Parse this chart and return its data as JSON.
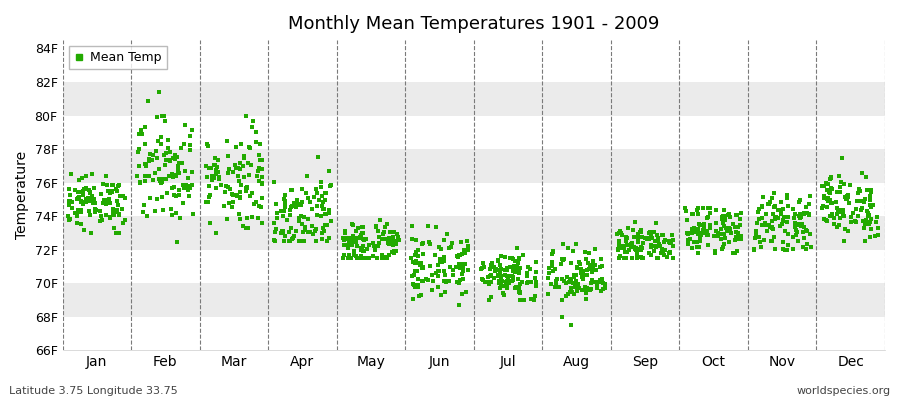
{
  "title": "Monthly Mean Temperatures 1901 - 2009",
  "ylabel": "Temperature",
  "bottom_left": "Latitude 3.75 Longitude 33.75",
  "bottom_right": "worldspecies.org",
  "legend_label": "Mean Temp",
  "dot_color": "#22aa00",
  "background_color": "#ffffff",
  "band_colors": [
    "#ffffff",
    "#ebebeb"
  ],
  "ylim": [
    66,
    84.5
  ],
  "yticks": [
    66,
    68,
    70,
    72,
    74,
    76,
    78,
    80,
    82,
    84
  ],
  "ytick_labels": [
    "66F",
    "68F",
    "70F",
    "72F",
    "74F",
    "76F",
    "78F",
    "80F",
    "82F",
    "84F"
  ],
  "months": [
    "Jan",
    "Feb",
    "Mar",
    "Apr",
    "May",
    "Jun",
    "Jul",
    "Aug",
    "Sep",
    "Oct",
    "Nov",
    "Dec"
  ],
  "month_means": [
    74.8,
    76.8,
    76.2,
    74.2,
    72.3,
    71.0,
    70.5,
    70.3,
    72.2,
    73.2,
    73.6,
    74.6
  ],
  "month_stds": [
    0.8,
    1.6,
    1.5,
    1.2,
    0.7,
    1.0,
    0.8,
    0.9,
    0.6,
    0.7,
    0.8,
    1.0
  ],
  "month_mins": [
    73.0,
    71.5,
    73.0,
    72.5,
    71.5,
    68.5,
    69.0,
    67.5,
    71.5,
    71.8,
    72.0,
    72.5
  ],
  "month_maxs": [
    76.5,
    82.5,
    80.0,
    77.5,
    74.0,
    74.5,
    73.0,
    72.5,
    74.0,
    74.5,
    77.0,
    79.0
  ],
  "n_years": 109,
  "dot_size": 5,
  "dot_marker": "s"
}
